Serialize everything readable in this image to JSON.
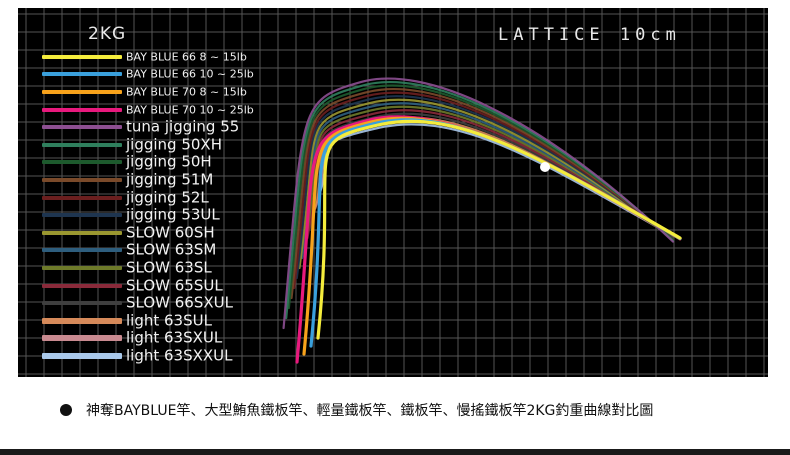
{
  "chart_data": {
    "type": "line",
    "title": "",
    "load_label": "2KG",
    "grid_label": "LATTICE 10cm",
    "grid": true,
    "legend_position": "left",
    "series": [
      {
        "name": "BAY BLUE 66 8 ~ 15lb",
        "color": "#f4ec3c",
        "tip_y": 3.0
      },
      {
        "name": "BAY BLUE 66 10 ~ 25lb",
        "color": "#3aa0dc",
        "tip_y": 3.2
      },
      {
        "name": "BAY BLUE 70 8 ~ 15lb",
        "color": "#f7a21b",
        "tip_y": 3.3
      },
      {
        "name": "BAY BLUE 70 10 ~ 25lb",
        "color": "#e8197d",
        "tip_y": 3.4
      },
      {
        "name": "tuna jigging 55",
        "color": "#8c4f91",
        "tip_y": 4.8
      },
      {
        "name": "jigging 50XH",
        "color": "#2f7f5d",
        "tip_y": 4.4
      },
      {
        "name": "jigging 50H",
        "color": "#1d5a2d",
        "tip_y": 4.0
      },
      {
        "name": "jigging 51M",
        "color": "#7a4a2a",
        "tip_y": 3.8
      },
      {
        "name": "jigging 52L",
        "color": "#6b1f1f",
        "tip_y": 3.6
      },
      {
        "name": "jigging 53UL",
        "color": "#1e3550",
        "tip_y": 3.3
      },
      {
        "name": "SLOW 60SH",
        "color": "#9a9730",
        "tip_y": 3.5
      },
      {
        "name": "SLOW 63SM",
        "color": "#2e5e7e",
        "tip_y": 3.2
      },
      {
        "name": "SLOW 63SL",
        "color": "#6e7a2a",
        "tip_y": 3.0
      },
      {
        "name": "SLOW 65SUL",
        "color": "#8a2a3a",
        "tip_y": 2.8
      },
      {
        "name": "SLOW 66SXUL",
        "color": "#3f3f3f",
        "tip_y": 2.6
      },
      {
        "name": "light 63SUL",
        "color": "#d68a5a",
        "tip_y": 2.4
      },
      {
        "name": "light 63SXUL",
        "color": "#c98a90",
        "tip_y": 2.2
      },
      {
        "name": "light 63SXXUL",
        "color": "#a9c8ea",
        "tip_y": 2.0
      }
    ]
  },
  "caption": "神奪BAYBLUE竿、大型鮪魚鐵板竿、輕量鐵板竿、鐵板竿、慢搖鐵板竿2KG釣重曲線對比圖"
}
